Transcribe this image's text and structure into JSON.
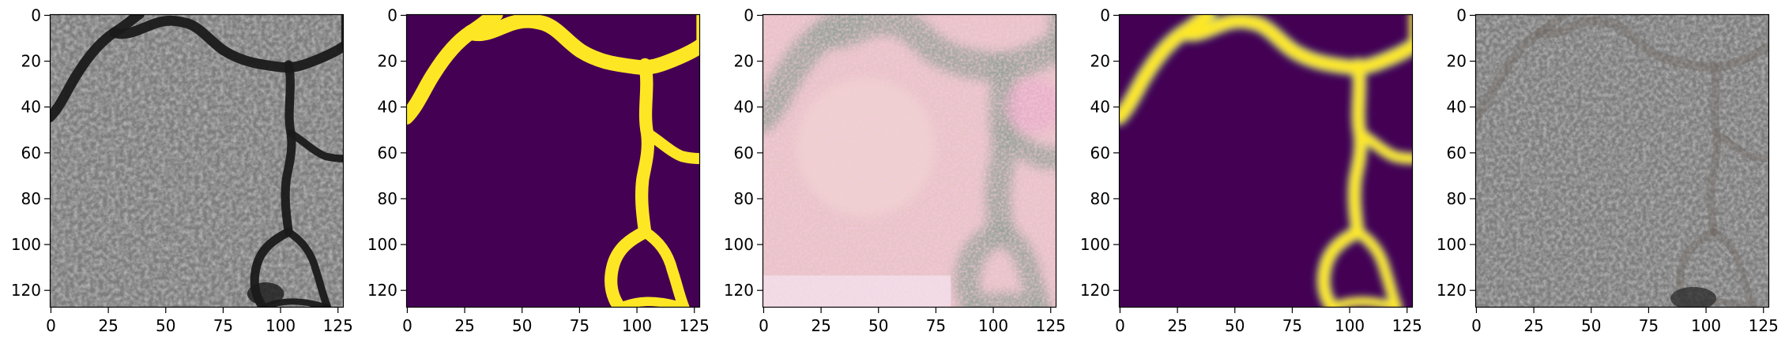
{
  "figure": {
    "panels": [
      {
        "id": "input-image",
        "kind": "photo",
        "variant": "raw"
      },
      {
        "id": "ground-truth-mask",
        "kind": "mask",
        "variant": "binary"
      },
      {
        "id": "reconstruction",
        "kind": "photo",
        "variant": "artifact"
      },
      {
        "id": "predicted-mask",
        "kind": "mask",
        "variant": "soft"
      },
      {
        "id": "output-image",
        "kind": "photo",
        "variant": "clean"
      }
    ],
    "x_ticks": [
      "0",
      "25",
      "50",
      "75",
      "100",
      "125"
    ],
    "y_ticks": [
      "0",
      "20",
      "40",
      "60",
      "80",
      "100",
      "120"
    ],
    "x_tick_values": [
      0,
      25,
      50,
      75,
      100,
      125
    ],
    "y_tick_values": [
      0,
      20,
      40,
      60,
      80,
      100,
      120
    ],
    "axis_range": [
      0,
      128
    ],
    "colors": {
      "mask_background": "#440154",
      "mask_foreground": "#fde725",
      "mask_mid": "#21918c",
      "asphalt": "#7d7d7d",
      "crack": "#1a1a1a",
      "axes": "#000000"
    }
  }
}
